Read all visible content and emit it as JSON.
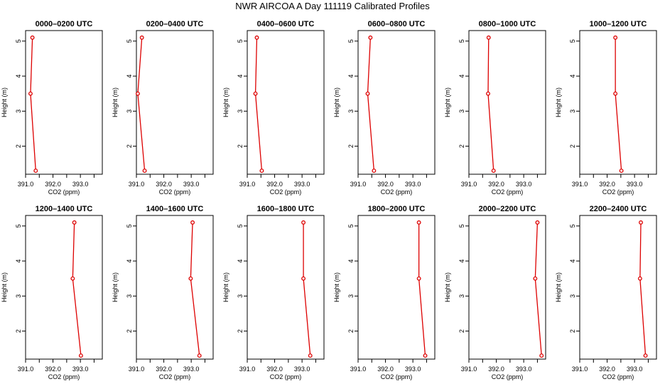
{
  "title": "NWR AIRCOA A  Day 111119  Calibrated Profiles",
  "colors": {
    "line": "#dd0000",
    "axis": "#000000",
    "background": "#ffffff"
  },
  "chart_data": [
    {
      "type": "line",
      "title": "0000–0200 UTC",
      "xlabel": "CO2 (ppm)",
      "ylabel": "Height (m)",
      "xlim": [
        391.0,
        393.8
      ],
      "ylim": [
        1.2,
        5.3
      ],
      "xticks": [
        "391.0",
        "392.0",
        "393.0"
      ],
      "yticks": [
        "2",
        "3",
        "4",
        "5"
      ],
      "series": [
        {
          "x": [
            391.25,
            391.18,
            391.37
          ],
          "y": [
            5.1,
            3.5,
            1.3
          ]
        }
      ]
    },
    {
      "type": "line",
      "title": "0200–0400 UTC",
      "xlabel": "CO2 (ppm)",
      "ylabel": "Height (m)",
      "xlim": [
        391.0,
        393.8
      ],
      "ylim": [
        1.2,
        5.3
      ],
      "xticks": [
        "391.0",
        "392.0",
        "393.0"
      ],
      "yticks": [
        "2",
        "3",
        "4",
        "5"
      ],
      "series": [
        {
          "x": [
            391.2,
            391.05,
            391.3
          ],
          "y": [
            5.1,
            3.5,
            1.3
          ]
        }
      ]
    },
    {
      "type": "line",
      "title": "0400–0600 UTC",
      "xlabel": "CO2 (ppm)",
      "ylabel": "Height (m)",
      "xlim": [
        391.0,
        393.8
      ],
      "ylim": [
        1.2,
        5.3
      ],
      "xticks": [
        "391.0",
        "392.0",
        "393.0"
      ],
      "yticks": [
        "2",
        "3",
        "4",
        "5"
      ],
      "series": [
        {
          "x": [
            391.35,
            391.3,
            391.53
          ],
          "y": [
            5.1,
            3.5,
            1.3
          ]
        }
      ]
    },
    {
      "type": "line",
      "title": "0600–0800 UTC",
      "xlabel": "CO2 (ppm)",
      "ylabel": "Height (m)",
      "xlim": [
        391.0,
        393.8
      ],
      "ylim": [
        1.2,
        5.3
      ],
      "xticks": [
        "391.0",
        "392.0",
        "393.0"
      ],
      "yticks": [
        "2",
        "3",
        "4",
        "5"
      ],
      "series": [
        {
          "x": [
            391.45,
            391.35,
            391.58
          ],
          "y": [
            5.1,
            3.5,
            1.3
          ]
        }
      ]
    },
    {
      "type": "line",
      "title": "0800–1000 UTC",
      "xlabel": "CO2 (ppm)",
      "ylabel": "Height (m)",
      "xlim": [
        391.0,
        393.8
      ],
      "ylim": [
        1.2,
        5.3
      ],
      "xticks": [
        "391.0",
        "392.0",
        "393.0"
      ],
      "yticks": [
        "2",
        "3",
        "4",
        "5"
      ],
      "series": [
        {
          "x": [
            391.72,
            391.7,
            391.9
          ],
          "y": [
            5.1,
            3.5,
            1.3
          ]
        }
      ]
    },
    {
      "type": "line",
      "title": "1000–1200 UTC",
      "xlabel": "CO2 (ppm)",
      "ylabel": "Height (m)",
      "xlim": [
        391.0,
        393.8
      ],
      "ylim": [
        1.2,
        5.3
      ],
      "xticks": [
        "391.0",
        "392.0",
        "393.0"
      ],
      "yticks": [
        "2",
        "3",
        "4",
        "5"
      ],
      "series": [
        {
          "x": [
            392.3,
            392.3,
            392.52
          ],
          "y": [
            5.1,
            3.5,
            1.3
          ]
        }
      ]
    },
    {
      "type": "line",
      "title": "1200–1400 UTC",
      "xlabel": "CO2 (ppm)",
      "ylabel": "Height (m)",
      "xlim": [
        391.0,
        393.8
      ],
      "ylim": [
        1.2,
        5.3
      ],
      "xticks": [
        "391.0",
        "392.0",
        "393.0"
      ],
      "yticks": [
        "2",
        "3",
        "4",
        "5"
      ],
      "series": [
        {
          "x": [
            392.78,
            392.72,
            393.02
          ],
          "y": [
            5.1,
            3.5,
            1.3
          ]
        }
      ]
    },
    {
      "type": "line",
      "title": "1400–1600 UTC",
      "xlabel": "CO2 (ppm)",
      "ylabel": "Height (m)",
      "xlim": [
        391.0,
        393.8
      ],
      "ylim": [
        1.2,
        5.3
      ],
      "xticks": [
        "391.0",
        "392.0",
        "393.0"
      ],
      "yticks": [
        "2",
        "3",
        "4",
        "5"
      ],
      "series": [
        {
          "x": [
            393.05,
            392.98,
            393.3
          ],
          "y": [
            5.1,
            3.5,
            1.3
          ]
        }
      ]
    },
    {
      "type": "line",
      "title": "1600–1800 UTC",
      "xlabel": "CO2 (ppm)",
      "ylabel": "Height (m)",
      "xlim": [
        391.0,
        393.8
      ],
      "ylim": [
        1.2,
        5.3
      ],
      "xticks": [
        "391.0",
        "392.0",
        "393.0"
      ],
      "yticks": [
        "2",
        "3",
        "4",
        "5"
      ],
      "series": [
        {
          "x": [
            393.05,
            393.05,
            393.3
          ],
          "y": [
            5.1,
            3.5,
            1.3
          ]
        }
      ]
    },
    {
      "type": "line",
      "title": "1800–2000 UTC",
      "xlabel": "CO2 (ppm)",
      "ylabel": "Height (m)",
      "xlim": [
        391.0,
        393.8
      ],
      "ylim": [
        1.2,
        5.3
      ],
      "xticks": [
        "391.0",
        "392.0",
        "393.0"
      ],
      "yticks": [
        "2",
        "3",
        "4",
        "5"
      ],
      "series": [
        {
          "x": [
            393.22,
            393.22,
            393.45
          ],
          "y": [
            5.1,
            3.5,
            1.3
          ]
        }
      ]
    },
    {
      "type": "line",
      "title": "2000–2200 UTC",
      "xlabel": "CO2 (ppm)",
      "ylabel": "Height (m)",
      "xlim": [
        391.0,
        393.8
      ],
      "ylim": [
        1.2,
        5.3
      ],
      "xticks": [
        "391.0",
        "392.0",
        "393.0"
      ],
      "yticks": [
        "2",
        "3",
        "4",
        "5"
      ],
      "series": [
        {
          "x": [
            393.5,
            393.42,
            393.65
          ],
          "y": [
            5.1,
            3.5,
            1.3
          ]
        }
      ]
    },
    {
      "type": "line",
      "title": "2200–2400 UTC",
      "xlabel": "CO2 (ppm)",
      "ylabel": "Height (m)",
      "xlim": [
        391.0,
        393.8
      ],
      "ylim": [
        1.2,
        5.3
      ],
      "xticks": [
        "391.0",
        "392.0",
        "393.0"
      ],
      "yticks": [
        "2",
        "3",
        "4",
        "5"
      ],
      "series": [
        {
          "x": [
            393.23,
            393.2,
            393.4
          ],
          "y": [
            5.1,
            3.5,
            1.3
          ]
        }
      ]
    }
  ]
}
